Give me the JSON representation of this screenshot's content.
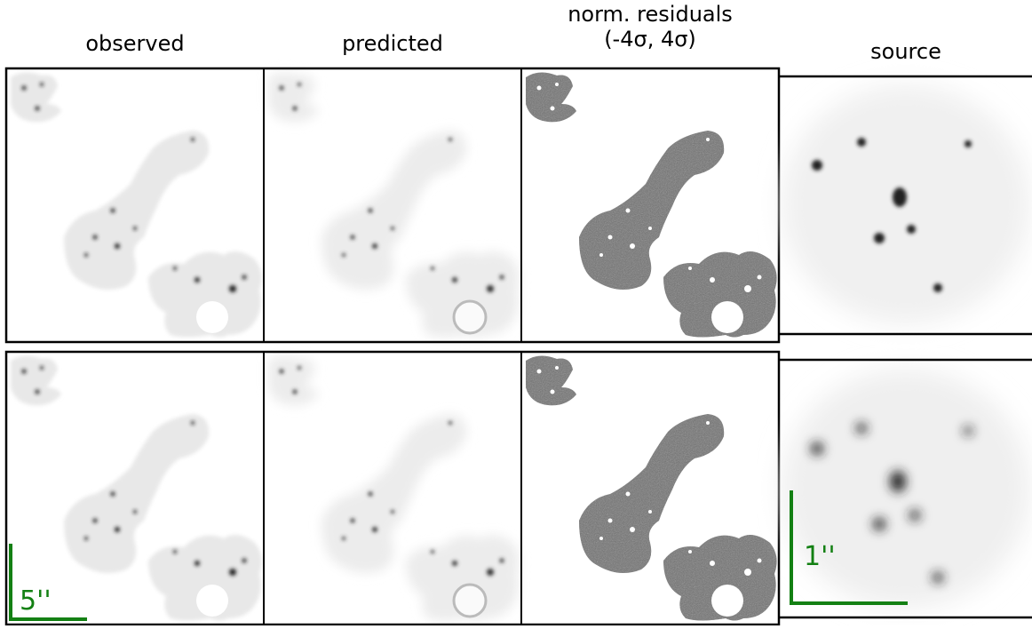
{
  "headers": {
    "observed": "observed",
    "predicted": "predicted",
    "residuals_line1": "norm. residuals",
    "residuals_line2": "(-4σ, 4σ)",
    "source": "source"
  },
  "scale_bars": {
    "image_plane": "5''",
    "source_plane": "1''"
  }
}
